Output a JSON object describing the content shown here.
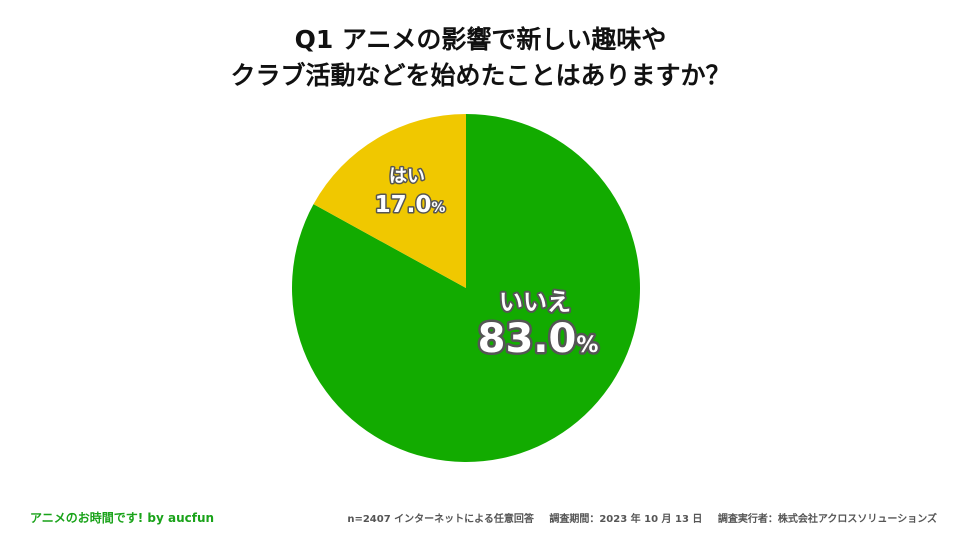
{
  "title": {
    "line1": "Q1 アニメの影響で新しい趣味や",
    "line2": "クラブ活動などを始めたことはありますか？"
  },
  "chart_data": {
    "type": "pie",
    "title": "Q1 アニメの影響で新しい趣味やクラブ活動などを始めたことはありますか？",
    "slices": [
      {
        "label": "いいえ",
        "value": 83.0,
        "display": "83.0",
        "color": "#12ab00"
      },
      {
        "label": "はい",
        "value": 17.0,
        "display": "17.0",
        "color": "#f0c800"
      }
    ],
    "unit": "%"
  },
  "footer": {
    "brand": "アニメのお時間です! by aucfun",
    "method": "n=2407 インターネットによる任意回答",
    "period": "調査期間：2023 年 10 月 13 日",
    "conductor": "調査実行者：株式会社アクロスソリューションズ"
  }
}
